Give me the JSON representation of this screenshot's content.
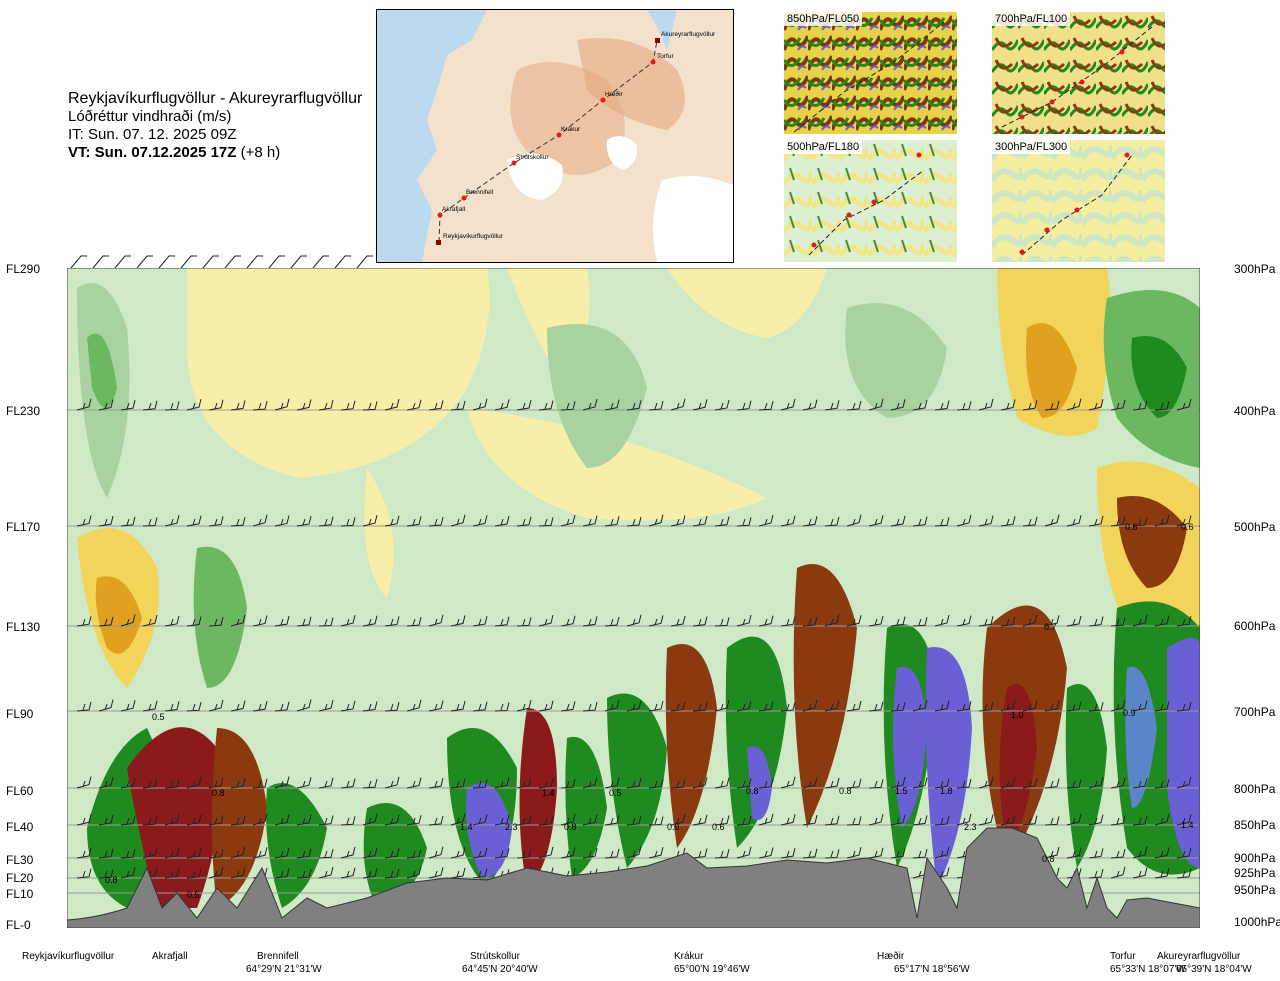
{
  "title": {
    "route": "Reykjavíkurflugvöllur - Akureyrarflugvöllur",
    "variable": "Lóðréttur vindhraði (m/s)",
    "init_time": "IT: Sun. 07. 12. 2025 09Z",
    "valid_time": "VT: Sun. 07.12.2025 17Z",
    "lead": "(+8 h)"
  },
  "map": {
    "waypoints": [
      "Akureyrarflugvöllur",
      "Torfur",
      "Hæðir",
      "Krákur",
      "Strútskollur",
      "Brennifell",
      "Akrafjall",
      "Reykjavíkurflugvöllur"
    ]
  },
  "insets": [
    "850hPa/FL050",
    "700hPa/FL100",
    "500hPa/FL180",
    "300hPa/FL300"
  ],
  "flight_levels": [
    "FL290",
    "FL230",
    "FL170",
    "FL130",
    "FL90",
    "FL60",
    "FL40",
    "FL30",
    "FL20",
    "FL10",
    "FL-0"
  ],
  "pressure_levels": [
    "300hPa",
    "400hPa",
    "500hPa",
    "600hPa",
    "700hPa",
    "800hPa",
    "850hPa",
    "900hPa",
    "925hPa",
    "950hPa",
    "1000hPa"
  ],
  "contour_values": [
    "0.8",
    "0.5",
    "0.8",
    "0.5",
    "1.4",
    "2.3",
    "0.8",
    "1.4",
    "0.5",
    "0.9",
    "0.6",
    "0.8",
    "0.8",
    "1.5",
    "1.8",
    "2.3",
    "0.8",
    "1.0",
    "0.7",
    "0.9",
    "1.4",
    "0.6",
    "0.6"
  ],
  "stations": [
    {
      "name": "Reykjavíkurflugvöllur",
      "coord": ""
    },
    {
      "name": "Akrafjall",
      "coord": ""
    },
    {
      "name": "Brennifell",
      "coord": "64°29'N 21°31'W"
    },
    {
      "name": "Strútskollur",
      "coord": "64°45'N 20°40'W"
    },
    {
      "name": "Krákur",
      "coord": "65°00'N 19°46'W"
    },
    {
      "name": "Hæðir",
      "coord": "65°17'N 18°56'W"
    },
    {
      "name": "Torfur",
      "coord": "65°33'N 18°07'W"
    },
    {
      "name": "Akureyrarflugvöllur",
      "coord": "65°39'N 18°04'W"
    }
  ],
  "colors": {
    "strong_up": "#6b5fd6",
    "mod_up": "#1f8a1f",
    "weak_up": "#c8e6c4",
    "weak_down": "#f7eeaa",
    "mod_down": "#e0a020",
    "strong_down": "#8b3a10",
    "terrain": "#808080"
  }
}
